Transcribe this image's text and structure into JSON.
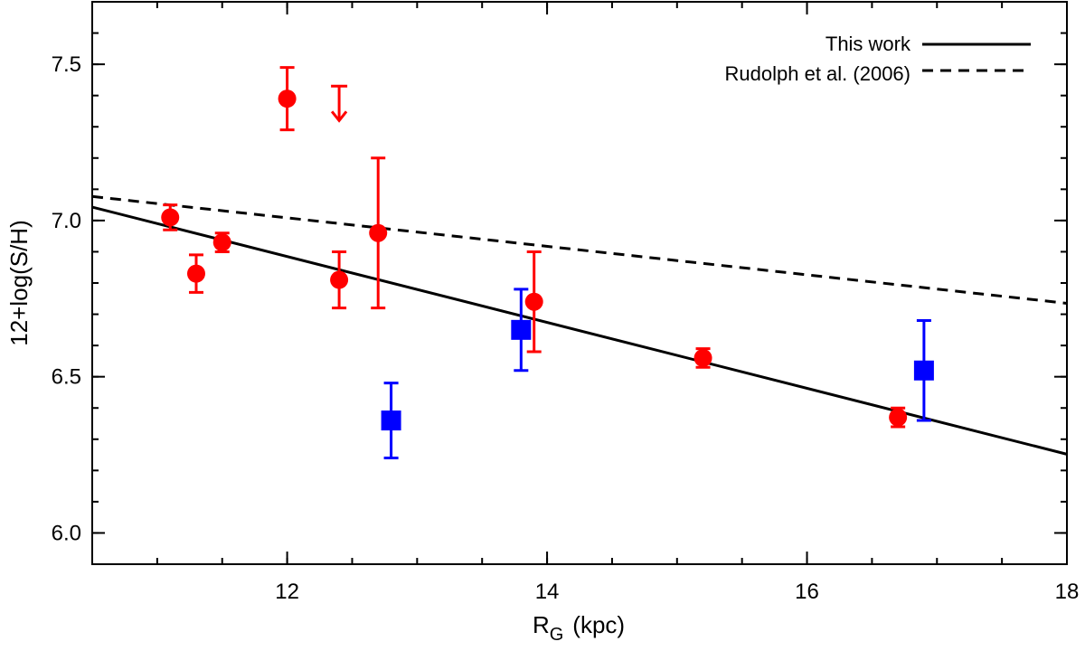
{
  "chart_data": {
    "type": "scatter",
    "title": "",
    "xlabel": "R",
    "xlabel_subscript": "G",
    "xlabel_unit": "(kpc)",
    "ylabel": "12+log(S/H)",
    "xlim": [
      10.5,
      18
    ],
    "ylim": [
      5.9,
      7.7
    ],
    "x_ticks": [
      12,
      14,
      16,
      18
    ],
    "x_tick_labels": [
      "12",
      "14",
      "16",
      "18"
    ],
    "x_minor_step": 0.5,
    "y_ticks": [
      6.0,
      6.5,
      7.0,
      7.5
    ],
    "y_tick_labels": [
      "6.0",
      "6.5",
      "7.0",
      "7.5"
    ],
    "y_minor_step": 0.1,
    "grid": false,
    "legend_position": "top-right",
    "series": [
      {
        "name": "red-circles",
        "marker": "circle",
        "color": "#ff0000",
        "points": [
          {
            "x": 11.1,
            "y": 7.01,
            "err_low": 0.04,
            "err_high": 0.04
          },
          {
            "x": 11.3,
            "y": 6.83,
            "err_low": 0.06,
            "err_high": 0.06
          },
          {
            "x": 11.5,
            "y": 6.93,
            "err_low": 0.03,
            "err_high": 0.03
          },
          {
            "x": 12.0,
            "y": 7.39,
            "err_low": 0.1,
            "err_high": 0.1
          },
          {
            "x": 12.4,
            "y": 6.81,
            "err_low": 0.09,
            "err_high": 0.09
          },
          {
            "x": 12.7,
            "y": 6.96,
            "err_low": 0.24,
            "err_high": 0.24
          },
          {
            "x": 13.9,
            "y": 6.74,
            "err_low": 0.16,
            "err_high": 0.16
          },
          {
            "x": 15.2,
            "y": 6.56,
            "err_low": 0.03,
            "err_high": 0.03
          },
          {
            "x": 16.7,
            "y": 6.37,
            "err_low": 0.03,
            "err_high": 0.03
          }
        ],
        "upper_limits": [
          {
            "x": 12.4,
            "y": 7.43,
            "arrow_to": 7.32
          }
        ]
      },
      {
        "name": "blue-squares",
        "marker": "square",
        "color": "#0000ff",
        "points": [
          {
            "x": 12.8,
            "y": 6.36,
            "err_low": 0.12,
            "err_high": 0.12
          },
          {
            "x": 13.8,
            "y": 6.65,
            "err_low": 0.13,
            "err_high": 0.13
          },
          {
            "x": 16.9,
            "y": 6.52,
            "err_low": 0.16,
            "err_high": 0.16
          }
        ]
      }
    ],
    "lines": [
      {
        "name": "This work",
        "style": "solid",
        "color": "#000000",
        "x": [
          10.5,
          18
        ],
        "y": [
          7.043,
          6.252
        ]
      },
      {
        "name": "Rudolph et al. (2006)",
        "style": "dashed",
        "color": "#000000",
        "x": [
          10.5,
          18
        ],
        "y": [
          7.077,
          6.735
        ]
      }
    ]
  }
}
